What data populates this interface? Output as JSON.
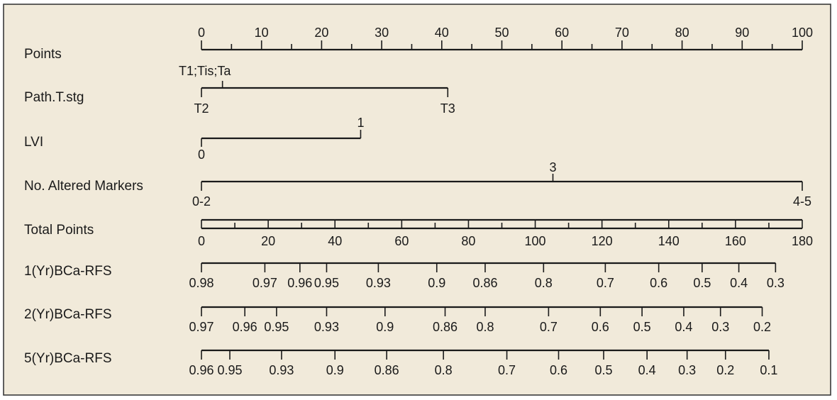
{
  "chart_data": {
    "type": "nomogram",
    "colors": {
      "background": "#f1eada",
      "ink": "#1a1a1a",
      "frame": "#3a3a3a"
    },
    "rows": [
      {
        "key": "points",
        "label": "Points",
        "range": [
          0,
          100
        ],
        "major_ticks": [
          0,
          10,
          20,
          30,
          40,
          50,
          60,
          70,
          80,
          90,
          100
        ],
        "minor_ticks": [
          5,
          15,
          25,
          35,
          45,
          55,
          65,
          75,
          85,
          95
        ],
        "tick_labels": [
          "0",
          "10",
          "20",
          "30",
          "40",
          "50",
          "60",
          "70",
          "80",
          "90",
          "100"
        ]
      },
      {
        "key": "path_t_stg",
        "label": "Path.T.stg",
        "levels": [
          {
            "label": "T1;Tis;Ta",
            "points": 3.5
          },
          {
            "label": "T2",
            "points": 0
          },
          {
            "label": "T3",
            "points": 41
          }
        ]
      },
      {
        "key": "lvi",
        "label": "LVI",
        "levels": [
          {
            "label": "0",
            "points": 0
          },
          {
            "label": "1",
            "points": 26.5
          }
        ]
      },
      {
        "key": "altered_markers",
        "label": "No. Altered Markers",
        "levels": [
          {
            "label": "0-2",
            "points": 0
          },
          {
            "label": "3",
            "points": 58.5
          },
          {
            "label": "4-5",
            "points": 100
          }
        ]
      },
      {
        "key": "total_points",
        "label": "Total Points",
        "range": [
          0,
          180
        ],
        "major_ticks": [
          0,
          20,
          40,
          60,
          80,
          100,
          120,
          140,
          160,
          180
        ],
        "minor_ticks": [
          10,
          30,
          50,
          70,
          90,
          110,
          130,
          150,
          170
        ],
        "tick_labels": [
          "0",
          "20",
          "40",
          "60",
          "80",
          "100",
          "120",
          "140",
          "160",
          "180"
        ]
      },
      {
        "key": "rfs_1yr",
        "label": "1(Yr)BCa-RFS",
        "probabilities": [
          {
            "label": "0.98",
            "total_points": 0
          },
          {
            "label": "0.97",
            "total_points": 19
          },
          {
            "label": "0.96",
            "total_points": 29.5
          },
          {
            "label": "0.95",
            "total_points": 37.5
          },
          {
            "label": "0.93",
            "total_points": 53
          },
          {
            "label": "0.9",
            "total_points": 70.5
          },
          {
            "label": "0.86",
            "total_points": 85
          },
          {
            "label": "0.8",
            "total_points": 102.5
          },
          {
            "label": "0.7",
            "total_points": 121
          },
          {
            "label": "0.6",
            "total_points": 137
          },
          {
            "label": "0.5",
            "total_points": 150
          },
          {
            "label": "0.4",
            "total_points": 161
          },
          {
            "label": "0.3",
            "total_points": 172
          }
        ]
      },
      {
        "key": "rfs_2yr",
        "label": "2(Yr)BCa-RFS",
        "probabilities": [
          {
            "label": "0.97",
            "total_points": 0
          },
          {
            "label": "0.96",
            "total_points": 13
          },
          {
            "label": "0.95",
            "total_points": 22.5
          },
          {
            "label": "0.93",
            "total_points": 37.5
          },
          {
            "label": "0.9",
            "total_points": 55
          },
          {
            "label": "0.86",
            "total_points": 73
          },
          {
            "label": "0.8",
            "total_points": 85
          },
          {
            "label": "0.7",
            "total_points": 104
          },
          {
            "label": "0.6",
            "total_points": 119.5
          },
          {
            "label": "0.5",
            "total_points": 132
          },
          {
            "label": "0.4",
            "total_points": 144.5
          },
          {
            "label": "0.3",
            "total_points": 155.5
          },
          {
            "label": "0.2",
            "total_points": 168
          }
        ]
      },
      {
        "key": "rfs_5yr",
        "label": "5(Yr)BCa-RFS",
        "probabilities": [
          {
            "label": "0.96",
            "total_points": 0
          },
          {
            "label": "0.95",
            "total_points": 8.5
          },
          {
            "label": "0.93",
            "total_points": 24
          },
          {
            "label": "0.9",
            "total_points": 40
          },
          {
            "label": "0.86",
            "total_points": 55.5
          },
          {
            "label": "0.8",
            "total_points": 72.5
          },
          {
            "label": "0.7",
            "total_points": 91.5
          },
          {
            "label": "0.6",
            "total_points": 107
          },
          {
            "label": "0.5",
            "total_points": 120.5
          },
          {
            "label": "0.4",
            "total_points": 133.5
          },
          {
            "label": "0.3",
            "total_points": 145.5
          },
          {
            "label": "0.2",
            "total_points": 157
          },
          {
            "label": "0.1",
            "total_points": 170
          }
        ]
      }
    ]
  }
}
